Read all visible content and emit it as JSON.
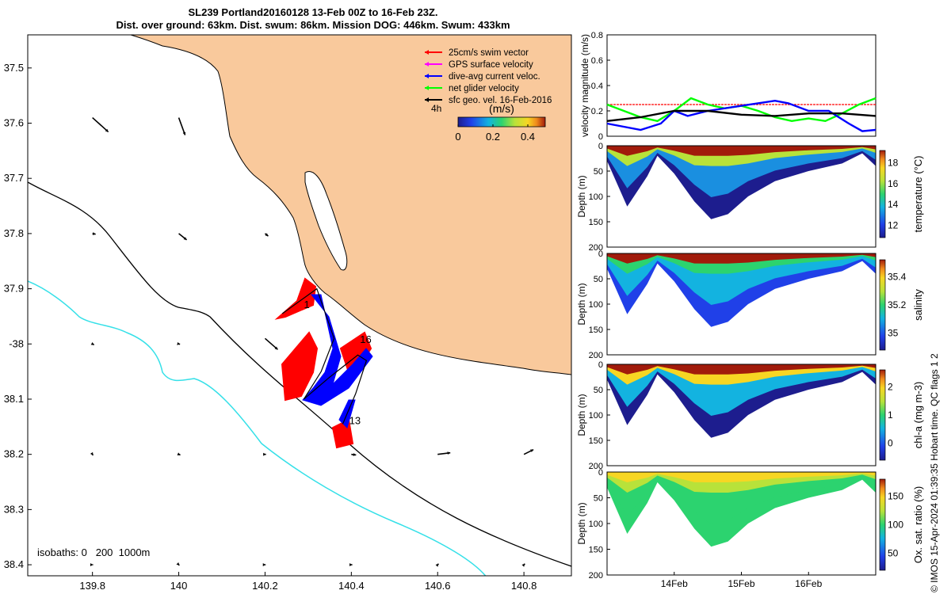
{
  "title": {
    "line1": "SL239 Portland20160128 13-Feb 00Z to 16-Feb 23Z.",
    "line2": "Dist. over ground: 63km. Dist. swum: 86km. Mission DOG: 446km. Swum: 433km"
  },
  "credit": "© IMOS 15-Apr-2024 01:39:35 Hobart time. QC flags 1  2",
  "colors": {
    "land": "#f9c99c",
    "coast": "#000000",
    "isobath_200": "#000000",
    "isobath_1000": "#35e0e8",
    "swim_vector": "#ff0000",
    "gps_velocity": "#ff00ff",
    "dive_avg_current": "#0000ff",
    "net_glider": "#00ff00",
    "sfc_geo": "#000000"
  },
  "chart_data": [
    {
      "type": "map",
      "xticks": [
        139.8,
        140,
        140.2,
        140.4,
        140.6,
        140.8
      ],
      "xtick_labels": [
        "139.8",
        "140",
        "140.2",
        "140.4",
        "140.6",
        "140.8"
      ],
      "yticks": [
        37.5,
        37.6,
        37.7,
        37.8,
        37.9,
        38.0,
        38.1,
        38.2,
        38.3,
        38.4
      ],
      "ytick_labels": [
        "37.5",
        "37.6",
        "37.7",
        "37.8",
        "37.9",
        "-38",
        "38.1",
        "38.2",
        "38.3",
        "38.4"
      ],
      "xlim": [
        139.65,
        140.91
      ],
      "ylim": [
        37.44,
        38.42
      ],
      "legend": {
        "position": "top-right",
        "entries": [
          {
            "label": "25cm/s swim vector",
            "color": "#ff0000"
          },
          {
            "label": "GPS surface velocity",
            "color": "#ff00ff"
          },
          {
            "label": "dive-avg current veloc.",
            "color": "#0000ff"
          },
          {
            "label": "net glider velocity",
            "color": "#00ff00"
          },
          {
            "label": "sfc geo. vel. 16-Feb-2016",
            "color": "#000000"
          }
        ]
      },
      "colorbar": {
        "label": "(m/s)",
        "range": [
          0,
          0.5
        ],
        "ticks": [
          "0",
          "0.2",
          "0.4"
        ],
        "time_label": "4h"
      },
      "isobaths_label": "isobaths: 0   200  1000m",
      "track_annotations": [
        {
          "label": "1",
          "lon": 140.29,
          "lat": 37.935
        },
        {
          "label": "16",
          "lon": 140.42,
          "lat": 37.998
        },
        {
          "label": "13",
          "lon": 140.395,
          "lat": 38.145
        }
      ],
      "glider_track": [
        [
          140.24,
          37.945
        ],
        [
          140.32,
          37.9
        ],
        [
          140.36,
          37.99
        ],
        [
          140.33,
          38.05
        ],
        [
          140.29,
          38.1
        ],
        [
          140.35,
          38.06
        ],
        [
          140.415,
          38.02
        ],
        [
          140.435,
          38.03
        ],
        [
          140.41,
          38.09
        ],
        [
          140.38,
          38.145
        ]
      ],
      "surface_geostrophic_vectors": [
        {
          "lon": 139.8,
          "lat": 37.59,
          "u": 0.5,
          "v": -0.45
        },
        {
          "lon": 140.0,
          "lat": 37.59,
          "u": 0.2,
          "v": -0.55
        },
        {
          "lon": 139.8,
          "lat": 37.8,
          "u": 0.1,
          "v": -0.02
        },
        {
          "lon": 140.0,
          "lat": 37.8,
          "u": 0.25,
          "v": -0.2
        },
        {
          "lon": 140.2,
          "lat": 37.8,
          "u": 0.1,
          "v": -0.08
        },
        {
          "lon": 139.8,
          "lat": 38.0,
          "u": 0.05,
          "v": -0.03
        },
        {
          "lon": 140.0,
          "lat": 38.0,
          "u": 0.04,
          "v": -0.01
        },
        {
          "lon": 140.2,
          "lat": 37.99,
          "u": 0.4,
          "v": -0.35
        },
        {
          "lon": 139.8,
          "lat": 38.2,
          "u": 0.02,
          "v": -0.03
        },
        {
          "lon": 140.0,
          "lat": 38.2,
          "u": 0.05,
          "v": -0.02
        },
        {
          "lon": 140.2,
          "lat": 38.2,
          "u": 0.03,
          "v": 0.0
        },
        {
          "lon": 140.4,
          "lat": 38.2,
          "u": 0.15,
          "v": -0.02
        },
        {
          "lon": 140.6,
          "lat": 38.2,
          "u": 0.4,
          "v": 0.05
        },
        {
          "lon": 140.8,
          "lat": 38.2,
          "u": 0.3,
          "v": 0.15
        },
        {
          "lon": 139.8,
          "lat": 38.4,
          "u": 0.02,
          "v": 0.0
        },
        {
          "lon": 140.0,
          "lat": 38.4,
          "u": 0.02,
          "v": -0.02
        },
        {
          "lon": 140.2,
          "lat": 38.4,
          "u": 0.02,
          "v": 0.0
        },
        {
          "lon": 140.4,
          "lat": 38.4,
          "u": 0.03,
          "v": 0.0
        },
        {
          "lon": 140.6,
          "lat": 38.4,
          "u": 0.03,
          "v": 0.03
        },
        {
          "lon": 140.8,
          "lat": 38.4,
          "u": 0.03,
          "v": 0.03
        }
      ]
    },
    {
      "type": "line",
      "ylabel": "velocity magnitude (m/s)",
      "ylim": [
        0,
        0.8
      ],
      "yticks": [
        "0",
        "0.2",
        "0.4",
        "0.6",
        "0.8"
      ],
      "x_range_days": [
        "13-Feb",
        "17-Feb"
      ],
      "series": [
        {
          "color": "#ff0000",
          "x": [
            0,
            4
          ],
          "values": [
            0.25,
            0.25
          ]
        },
        {
          "color": "#00ff00",
          "x": [
            0,
            0.25,
            0.5,
            0.75,
            1.0,
            1.25,
            1.5,
            1.75,
            2.0,
            2.25,
            2.5,
            2.75,
            3.0,
            3.25,
            3.5,
            3.75,
            4.0
          ],
          "values": [
            0.25,
            0.2,
            0.15,
            0.12,
            0.2,
            0.3,
            0.25,
            0.22,
            0.24,
            0.2,
            0.15,
            0.12,
            0.14,
            0.12,
            0.18,
            0.25,
            0.3
          ]
        },
        {
          "color": "#0000ff",
          "x": [
            0,
            0.5,
            0.8,
            1.0,
            1.2,
            1.5,
            2.0,
            2.5,
            2.7,
            3.0,
            3.3,
            3.6,
            3.8,
            4.0
          ],
          "values": [
            0.1,
            0.05,
            0.1,
            0.2,
            0.16,
            0.2,
            0.24,
            0.28,
            0.26,
            0.2,
            0.2,
            0.1,
            0.04,
            0.05
          ]
        },
        {
          "color": "#000000",
          "x": [
            0,
            0.5,
            1.0,
            1.5,
            2.0,
            2.5,
            3.0,
            3.5,
            4.0
          ],
          "values": [
            0.12,
            0.15,
            0.2,
            0.2,
            0.17,
            0.16,
            0.18,
            0.18,
            0.16
          ]
        }
      ]
    },
    {
      "type": "heatmap",
      "variable": "temperature",
      "ylabel": "Depth (m)",
      "yticks": [
        "0",
        "50",
        "100",
        "150",
        "200"
      ],
      "colorbar_label": "temperature (°C)",
      "colorbar_ticks": [
        "12",
        "14",
        "16",
        "18"
      ],
      "cmap": "parula-like"
    },
    {
      "type": "heatmap",
      "variable": "salinity",
      "ylabel": "Depth (m)",
      "yticks": [
        "0",
        "50",
        "100",
        "150",
        "200"
      ],
      "colorbar_label": "salinity",
      "colorbar_ticks": [
        "35",
        "35.2",
        "35.4"
      ],
      "cmap": "parula-like"
    },
    {
      "type": "heatmap",
      "variable": "chl-a",
      "ylabel": "Depth (m)",
      "yticks": [
        "0",
        "50",
        "100",
        "150",
        "200"
      ],
      "colorbar_label": "chl-a (mg m-3)",
      "colorbar_ticks": [
        "0",
        "1",
        "2"
      ],
      "cmap": "parula-like"
    },
    {
      "type": "heatmap",
      "variable": "oxygen saturation",
      "ylabel": "Depth (m)",
      "yticks": [
        "0",
        "50",
        "100",
        "150",
        "200"
      ],
      "colorbar_label": "Ox. sat. ratio (%)",
      "colorbar_ticks": [
        "50",
        "100",
        "150"
      ],
      "cmap": "parula-like",
      "xtick_labels": [
        "14Feb",
        "15Feb",
        "16Feb"
      ]
    }
  ]
}
